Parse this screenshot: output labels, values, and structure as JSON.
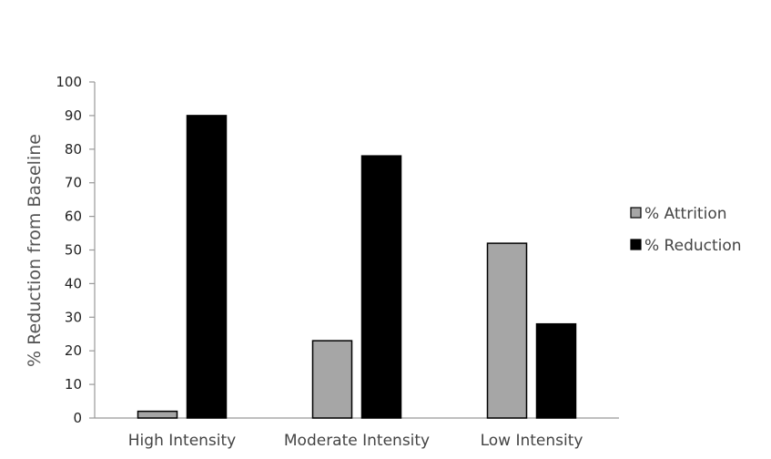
{
  "chart_data": {
    "type": "bar",
    "categories": [
      "High Intensity",
      "Moderate Intensity",
      "Low Intensity"
    ],
    "series": [
      {
        "name": "% Attrition",
        "values": [
          2,
          23,
          52
        ],
        "color": "#a6a6a6"
      },
      {
        "name": "% Reduction",
        "values": [
          90,
          78,
          28
        ],
        "color": "#000000"
      }
    ],
    "title": "",
    "xlabel": "",
    "ylabel": "% Reduction from Baseline",
    "ylim": [
      0,
      100
    ],
    "yticks": [
      "0",
      "10",
      "20",
      "30",
      "40",
      "50",
      "60",
      "70",
      "80",
      "90",
      "100"
    ],
    "grid": false,
    "legend_position": "right"
  }
}
